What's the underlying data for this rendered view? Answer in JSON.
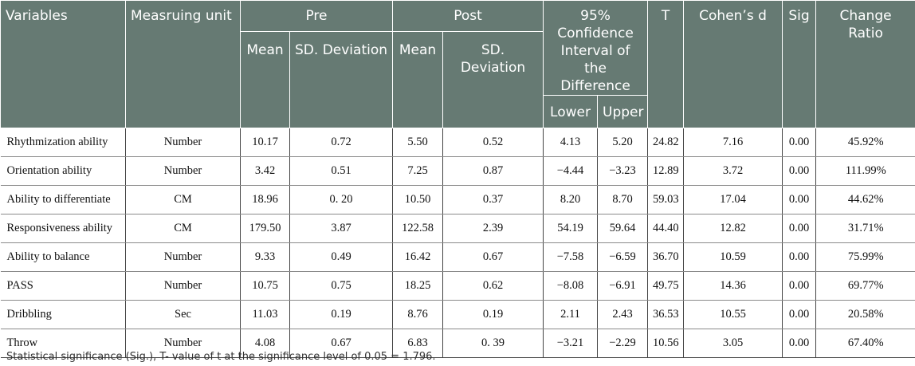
{
  "headers": {
    "variables": "Variables",
    "unit": "Measruing unit",
    "pre": "Pre",
    "post": "Post",
    "ci": "95% Confidence Interval of the Difference",
    "t": "T",
    "cohen": "Cohen’s d",
    "sig": "Sig",
    "change": "Change Ratio",
    "pre_mean": "Mean",
    "pre_sd": "SD. Deviation",
    "post_mean": "Mean",
    "post_sd": "SD. Deviation",
    "lower": "Lower",
    "upper": "Upper"
  },
  "rows": [
    [
      "Rhythmization ability",
      "Number",
      "10.17",
      "0.72",
      "5.50",
      "0.52",
      "4.13",
      "5.20",
      "24.82",
      "7.16",
      "0.00",
      "45.92%"
    ],
    [
      "Orientation ability",
      "Number",
      "3.42",
      "0.51",
      "7.25",
      "0.87",
      "−4.44",
      "−3.23",
      "12.89",
      "3.72",
      "0.00",
      "111.99%"
    ],
    [
      "Ability to differentiate",
      "CM",
      "18.96",
      "0. 20",
      "10.50",
      "0.37",
      "8.20",
      "8.70",
      "59.03",
      "17.04",
      "0.00",
      "44.62%"
    ],
    [
      "Responsiveness ability",
      "CM",
      "179.50",
      "3.87",
      "122.58",
      "2.39",
      "54.19",
      "59.64",
      "44.40",
      "12.82",
      "0.00",
      "31.71%"
    ],
    [
      "Ability to balance",
      "Number",
      "9.33",
      "0.49",
      "16.42",
      "0.67",
      "−7.58",
      "−6.59",
      "36.70",
      "10.59",
      "0.00",
      "75.99%"
    ],
    [
      "PASS",
      "Number",
      "10.75",
      "0.75",
      "18.25",
      "0.62",
      "−8.08",
      "−6.91",
      "49.75",
      "14.36",
      "0.00",
      "69.77%"
    ],
    [
      "Dribbling",
      "Sec",
      "11.03",
      "0.19",
      "8.76",
      "0.19",
      "2.11",
      "2.43",
      "36.53",
      "10.55",
      "0.00",
      "20.58%"
    ],
    [
      "Throw",
      "Number",
      "4.08",
      "0.67",
      "6.83",
      "0. 39",
      "−3.21",
      "−2.29",
      "10.56",
      "3.05",
      "0.00",
      "67.40%"
    ]
  ],
  "footnote": "Statistical significance (Sig.), T- value of t at the significance level of 0.05 = 1.796."
}
